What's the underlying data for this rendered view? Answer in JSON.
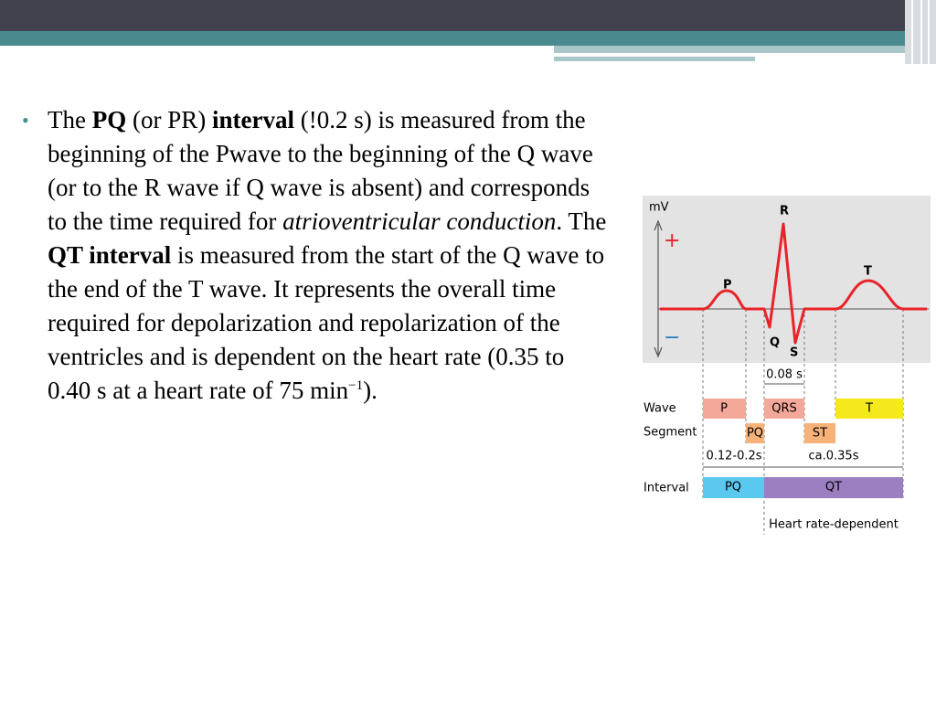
{
  "bullet": {
    "parts": [
      "The ",
      "PQ",
      " (or PR) ",
      "interval",
      " (!0.2 s) is measured from the beginning of the Pwave to the beginning of the Q wave (or to the R wave if Q wave is absent) and corresponds to the time required for ",
      "atrioventricular conduction",
      ". The ",
      "QT interval",
      " is measured from the start of the Q wave to the end of the T wave. It represents the overall time required for depolarization and repolarization of the ventricles and is dependent on the heart rate (0.35 to 0.40 s at a heart rate of 75 min",
      "−1",
      ")."
    ]
  },
  "diagram": {
    "axis": "mV",
    "plus": "+",
    "minus": "−",
    "waves": {
      "p": "P",
      "q": "Q",
      "r": "R",
      "s": "S",
      "t": "T"
    },
    "qrs_duration": "0.08 s",
    "rows": {
      "wave": "Wave",
      "segment": "Segment",
      "interval": "Interval"
    },
    "wave_boxes": {
      "p": "P",
      "qrs": "QRS",
      "t": "T"
    },
    "segment_boxes": {
      "pq": "PQ",
      "st": "ST"
    },
    "pq_range": "0.12-0.2s",
    "qt_range": "ca.0.35s",
    "interval_boxes": {
      "pq": "PQ",
      "qt": "QT"
    },
    "qt_note": "Heart rate-dependent"
  }
}
